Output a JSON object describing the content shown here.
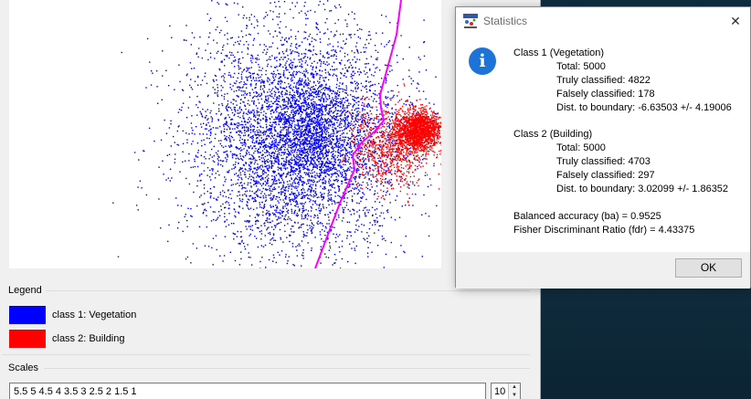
{
  "dialog": {
    "title": "Statistics",
    "class1": {
      "heading": "Class 1 (Vegetation)",
      "total": "Total: 5000",
      "truly": "Truly classified: 4822",
      "falsely": "Falsely classified: 178",
      "dist": "Dist. to boundary: -6.63503 +/- 4.19006"
    },
    "class2": {
      "heading": "Class 2 (Building)",
      "total": "Total: 5000",
      "truly": "Truly classified: 4703",
      "falsely": "Falsely classified: 297",
      "dist": "Dist. to boundary: 3.02099 +/- 1.86352"
    },
    "balanced_accuracy": "Balanced accuracy (ba) = 0.9525",
    "fisher_ratio": "Fisher Discriminant Ratio (fdr) = 4.43375",
    "ok_label": "OK",
    "close_glyph": "✕",
    "info_glyph": "i",
    "app_icon": "cloudcompare-app-icon"
  },
  "legend": {
    "title": "Legend",
    "items": [
      {
        "label": "class 1: Vegetation",
        "color": "#0000ff"
      },
      {
        "label": "class 2: Building",
        "color": "#ff0000"
      }
    ]
  },
  "scales": {
    "title": "Scales",
    "value": "5.5 5 4.5 4 3.5 3 2.5 2 1.5 1",
    "spin_value": "10"
  },
  "colors": {
    "class1": "#0000ff",
    "class2": "#ff0000",
    "boundary": "#ff00ff"
  }
}
